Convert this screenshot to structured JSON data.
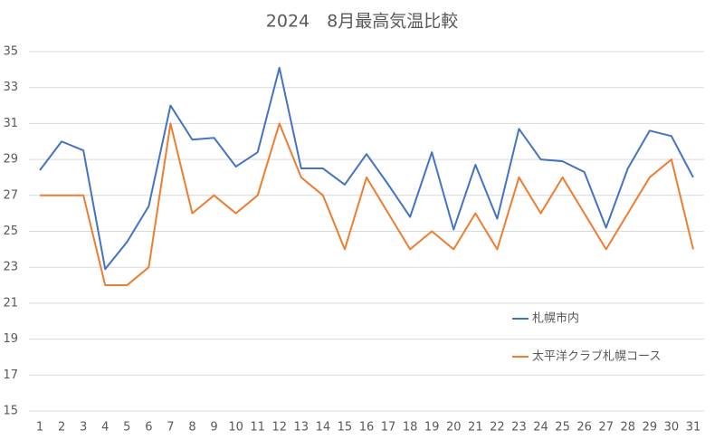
{
  "chart_data": {
    "type": "line",
    "title": "2024　8月最高気温比較",
    "categories": [
      "1",
      "2",
      "3",
      "4",
      "5",
      "6",
      "7",
      "8",
      "9",
      "10",
      "11",
      "12",
      "13",
      "14",
      "15",
      "16",
      "17",
      "18",
      "19",
      "20",
      "21",
      "22",
      "23",
      "24",
      "25",
      "26",
      "27",
      "28",
      "29",
      "30",
      "31"
    ],
    "series": [
      {
        "name": "札幌市内",
        "color": "#4472c4",
        "values": [
          28.4,
          30.0,
          29.5,
          22.9,
          24.4,
          26.4,
          32.0,
          30.1,
          30.2,
          28.6,
          29.4,
          34.1,
          28.5,
          28.5,
          27.6,
          29.3,
          27.6,
          25.8,
          29.4,
          25.1,
          28.7,
          25.7,
          30.7,
          29.0,
          28.9,
          28.3,
          25.2,
          28.5,
          30.6,
          30.3,
          28.0
        ]
      },
      {
        "name": "太平洋クラブ札幌コース",
        "color": "#ed7d31",
        "values": [
          27,
          27,
          27,
          22,
          22,
          23,
          31,
          26,
          27,
          26,
          27,
          31,
          28,
          27,
          24,
          28,
          26,
          24,
          25,
          24,
          26,
          24,
          28,
          26,
          28,
          26,
          24,
          26,
          28,
          29,
          24
        ]
      }
    ],
    "ylim": [
      15,
      35
    ],
    "yticks": [
      15,
      17,
      19,
      21,
      23,
      25,
      27,
      29,
      31,
      33,
      35
    ],
    "grid": true,
    "legend": "right"
  }
}
